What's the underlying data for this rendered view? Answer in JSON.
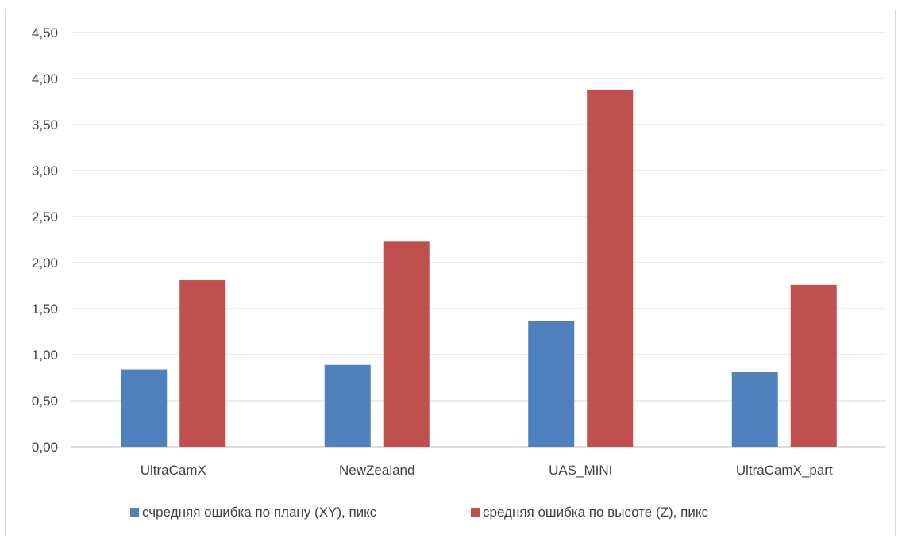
{
  "chart_data": {
    "type": "bar",
    "categories": [
      "UltraCamX",
      "NewZealand",
      "UAS_MINI",
      "UltraCamX_part"
    ],
    "series": [
      {
        "name": "счредняя ошибка по плану (XY), пикс",
        "color": "#4f81bd",
        "values": [
          0.84,
          0.89,
          1.37,
          0.81
        ]
      },
      {
        "name": "средняя ошибка по высоте (Z), пикс",
        "color": "#c0504d",
        "values": [
          1.81,
          2.23,
          3.88,
          1.76
        ]
      }
    ],
    "y_ticks": [
      "0,00",
      "0,50",
      "1,00",
      "1,50",
      "2,00",
      "2,50",
      "3,00",
      "3,50",
      "4,00",
      "4,50"
    ],
    "ylim": [
      0,
      4.5
    ],
    "y_step": 0.5,
    "grid": true,
    "legend_position": "bottom"
  }
}
